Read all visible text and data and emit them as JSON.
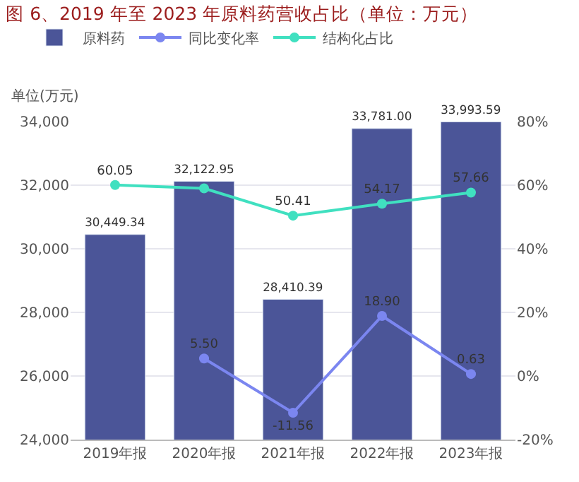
{
  "chart_data": {
    "type": "bar",
    "title": "图 6、2019 年至 2023 年原料药营收占比（单位：万元）",
    "ylabel": "单位(万元)",
    "categories": [
      "2019年报",
      "2020年报",
      "2021年报",
      "2022年报",
      "2023年报"
    ],
    "series": [
      {
        "name": "原料药",
        "color": "#4b5598",
        "values": [
          30449.34,
          32122.95,
          28410.39,
          33781.0,
          33993.59
        ],
        "value_labels": [
          "30,449.34",
          "32,122.95",
          "28,410.39",
          "33,781.00",
          "33,993.59"
        ]
      },
      {
        "name": "同比变化率",
        "type": "line",
        "axis": "y2",
        "color": "#7b86f0",
        "values": [
          null,
          5.5,
          -11.56,
          18.9,
          0.63
        ],
        "value_labels": [
          null,
          "5.50",
          "-11.56",
          "18.90",
          "0.63"
        ]
      },
      {
        "name": "结构化占比",
        "type": "line",
        "axis": "y2",
        "color": "#40e0c0",
        "values": [
          60.05,
          59,
          50.41,
          54.17,
          57.66
        ],
        "value_labels": [
          "60.05",
          null,
          "50.41",
          "54.17",
          "57.66"
        ]
      }
    ],
    "ylim": [
      24000,
      34000
    ],
    "yticks": [
      {
        "value": 24000,
        "label": "24,000"
      },
      {
        "value": 26000,
        "label": "26,000"
      },
      {
        "value": 28000,
        "label": "28,000"
      },
      {
        "value": 30000,
        "label": "30,000"
      },
      {
        "value": 32000,
        "label": "32,000"
      },
      {
        "value": 34000,
        "label": "34,000"
      }
    ],
    "y2lim": [
      -20,
      80
    ],
    "y2ticks": [
      {
        "value": -20,
        "label": "-20%"
      },
      {
        "value": 0,
        "label": "0%"
      },
      {
        "value": 20,
        "label": "20%"
      },
      {
        "value": 40,
        "label": "40%"
      },
      {
        "value": 60,
        "label": "60%"
      },
      {
        "value": 80,
        "label": "80%"
      }
    ],
    "grid": "y",
    "legend": "top left",
    "marker": "circle"
  }
}
